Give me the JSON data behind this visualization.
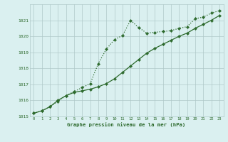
{
  "x": [
    0,
    1,
    2,
    3,
    4,
    5,
    6,
    7,
    8,
    9,
    10,
    11,
    12,
    13,
    14,
    15,
    16,
    17,
    18,
    19,
    20,
    21,
    22,
    23
  ],
  "line1": [
    1015.2,
    1015.35,
    1015.6,
    1015.95,
    1016.3,
    1016.55,
    1016.8,
    1017.05,
    1018.3,
    1019.2,
    1019.8,
    1020.05,
    1021.0,
    1020.55,
    1020.2,
    1020.25,
    1020.3,
    1020.35,
    1020.5,
    1020.6,
    1021.1,
    1021.2,
    1021.45,
    1021.6
  ],
  "line2": [
    1015.2,
    1015.35,
    1015.6,
    1016.0,
    1016.3,
    1016.5,
    1016.6,
    1016.7,
    1016.85,
    1017.05,
    1017.35,
    1017.75,
    1018.15,
    1018.55,
    1018.95,
    1019.25,
    1019.5,
    1019.75,
    1020.0,
    1020.2,
    1020.5,
    1020.75,
    1021.0,
    1021.3
  ],
  "line_color": "#2d6a2d",
  "bg_color": "#daf0f0",
  "grid_color": "#afc8c8",
  "xlabel": "Graphe pression niveau de la mer (hPa)",
  "ylim": [
    1015,
    1022
  ],
  "yticks": [
    1015,
    1016,
    1017,
    1018,
    1019,
    1020,
    1021
  ],
  "xlim": [
    -0.5,
    23.5
  ],
  "xticks": [
    0,
    1,
    2,
    3,
    4,
    5,
    6,
    7,
    8,
    9,
    10,
    11,
    12,
    13,
    14,
    15,
    16,
    17,
    18,
    19,
    20,
    21,
    22,
    23
  ],
  "xtick_labels": [
    "0",
    "1",
    "2",
    "3",
    "4",
    "5",
    "6",
    "7",
    "8",
    "9",
    "10",
    "11",
    "12",
    "13",
    "14",
    "15",
    "16",
    "17",
    "18",
    "19",
    "20",
    "21",
    "22",
    "23"
  ]
}
